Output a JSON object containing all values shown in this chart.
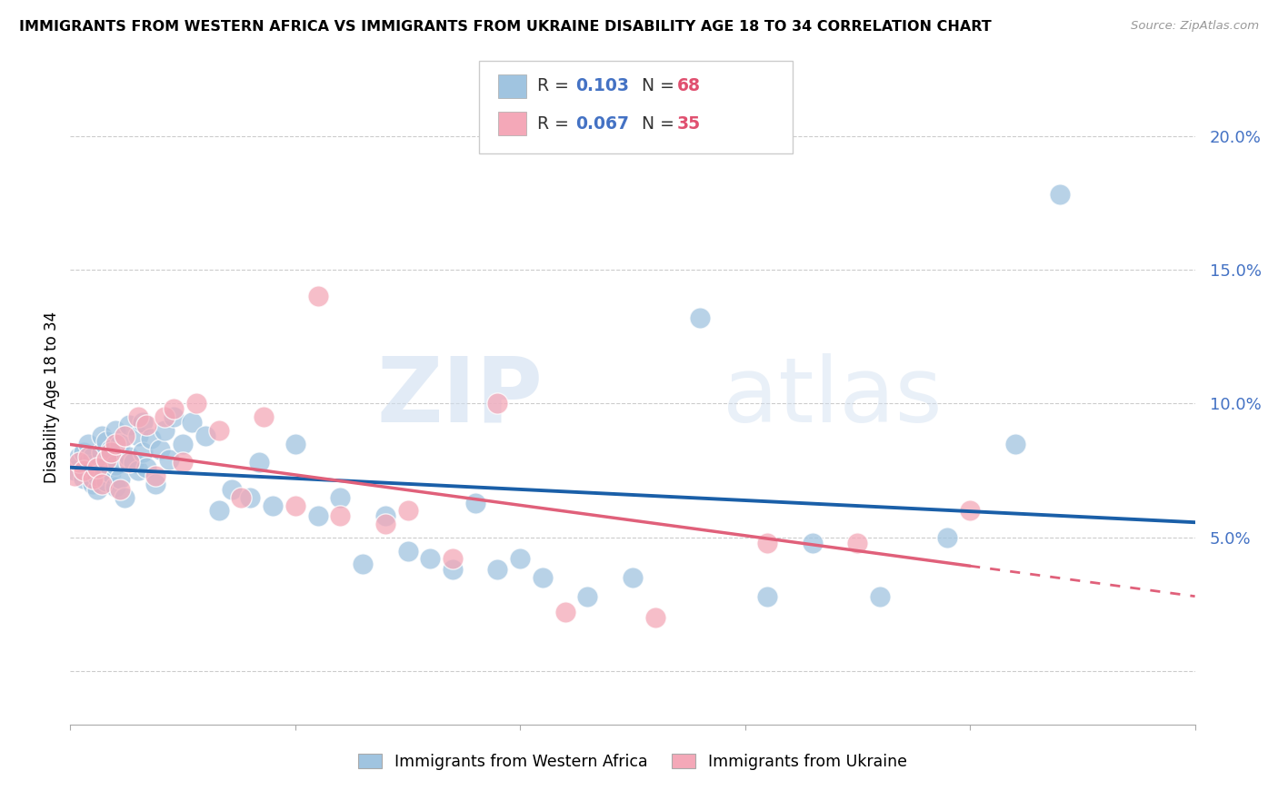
{
  "title": "IMMIGRANTS FROM WESTERN AFRICA VS IMMIGRANTS FROM UKRAINE DISABILITY AGE 18 TO 34 CORRELATION CHART",
  "source": "Source: ZipAtlas.com",
  "ylabel": "Disability Age 18 to 34",
  "ytick_positions": [
    0.0,
    0.05,
    0.1,
    0.15,
    0.2
  ],
  "ytick_labels": [
    "",
    "5.0%",
    "10.0%",
    "15.0%",
    "20.0%"
  ],
  "xlim": [
    0.0,
    0.25
  ],
  "ylim": [
    -0.02,
    0.225
  ],
  "legend_r1": "0.103",
  "legend_n1": "68",
  "legend_r2": "0.067",
  "legend_n2": "35",
  "watermark_zip": "ZIP",
  "watermark_atlas": "atlas",
  "blue_scatter_color": "#a0c4e0",
  "pink_scatter_color": "#f4a8b8",
  "blue_line_color": "#1a5fa8",
  "pink_line_color": "#e0607a",
  "axis_tick_color": "#4472c4",
  "grid_color": "#cccccc",
  "wa_x": [
    0.001,
    0.002,
    0.003,
    0.003,
    0.004,
    0.004,
    0.005,
    0.005,
    0.005,
    0.006,
    0.006,
    0.007,
    0.007,
    0.007,
    0.008,
    0.008,
    0.008,
    0.009,
    0.009,
    0.01,
    0.01,
    0.01,
    0.011,
    0.011,
    0.012,
    0.013,
    0.013,
    0.014,
    0.015,
    0.015,
    0.016,
    0.016,
    0.017,
    0.018,
    0.019,
    0.02,
    0.021,
    0.022,
    0.023,
    0.025,
    0.027,
    0.03,
    0.033,
    0.036,
    0.04,
    0.042,
    0.045,
    0.05,
    0.055,
    0.06,
    0.065,
    0.07,
    0.075,
    0.08,
    0.085,
    0.09,
    0.095,
    0.1,
    0.105,
    0.115,
    0.125,
    0.14,
    0.155,
    0.165,
    0.18,
    0.195,
    0.21,
    0.22
  ],
  "wa_y": [
    0.075,
    0.08,
    0.072,
    0.082,
    0.078,
    0.085,
    0.07,
    0.076,
    0.08,
    0.068,
    0.073,
    0.075,
    0.082,
    0.088,
    0.071,
    0.079,
    0.086,
    0.074,
    0.083,
    0.069,
    0.077,
    0.09,
    0.072,
    0.085,
    0.065,
    0.08,
    0.092,
    0.078,
    0.075,
    0.088,
    0.082,
    0.093,
    0.076,
    0.087,
    0.07,
    0.083,
    0.09,
    0.079,
    0.095,
    0.085,
    0.093,
    0.088,
    0.06,
    0.068,
    0.065,
    0.078,
    0.062,
    0.085,
    0.058,
    0.065,
    0.04,
    0.058,
    0.045,
    0.042,
    0.038,
    0.063,
    0.038,
    0.042,
    0.035,
    0.028,
    0.035,
    0.132,
    0.028,
    0.048,
    0.028,
    0.05,
    0.085,
    0.178
  ],
  "uk_x": [
    0.001,
    0.002,
    0.003,
    0.004,
    0.005,
    0.006,
    0.007,
    0.008,
    0.009,
    0.01,
    0.011,
    0.012,
    0.013,
    0.015,
    0.017,
    0.019,
    0.021,
    0.023,
    0.025,
    0.028,
    0.033,
    0.038,
    0.043,
    0.05,
    0.055,
    0.06,
    0.07,
    0.075,
    0.085,
    0.095,
    0.11,
    0.13,
    0.155,
    0.175,
    0.2
  ],
  "uk_y": [
    0.073,
    0.078,
    0.075,
    0.08,
    0.072,
    0.076,
    0.07,
    0.079,
    0.082,
    0.085,
    0.068,
    0.088,
    0.078,
    0.095,
    0.092,
    0.073,
    0.095,
    0.098,
    0.078,
    0.1,
    0.09,
    0.065,
    0.095,
    0.062,
    0.14,
    0.058,
    0.055,
    0.06,
    0.042,
    0.1,
    0.022,
    0.02,
    0.048,
    0.048,
    0.06
  ]
}
